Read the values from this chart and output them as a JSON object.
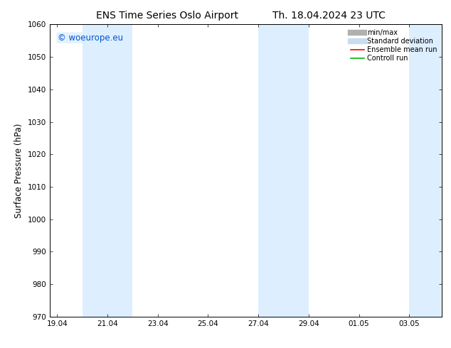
{
  "title_left": "ENS Time Series Oslo Airport",
  "title_right": "Th. 18.04.2024 23 UTC",
  "ylabel": "Surface Pressure (hPa)",
  "ylim": [
    970,
    1060
  ],
  "yticks": [
    970,
    980,
    990,
    1000,
    1010,
    1020,
    1030,
    1040,
    1050,
    1060
  ],
  "xtick_labels": [
    "19.04",
    "21.04",
    "23.04",
    "25.04",
    "27.04",
    "29.04",
    "01.05",
    "03.05"
  ],
  "xtick_positions": [
    0,
    2,
    4,
    6,
    8,
    10,
    12,
    14
  ],
  "xlim": [
    -0.3,
    15.3
  ],
  "watermark": "© woeurope.eu",
  "watermark_color": "#0055cc",
  "bg_color": "#ffffff",
  "shaded_regions": [
    {
      "x_start": 1.0,
      "x_end": 3.0
    },
    {
      "x_start": 8.0,
      "x_end": 10.0
    },
    {
      "x_start": 14.0,
      "x_end": 15.3
    }
  ],
  "shaded_color": "#ddeeff",
  "legend_items": [
    {
      "label": "min/max",
      "color": "#b0b0b0",
      "lw": 6,
      "ls": "-"
    },
    {
      "label": "Standard deviation",
      "color": "#c8ddf0",
      "lw": 6,
      "ls": "-"
    },
    {
      "label": "Ensemble mean run",
      "color": "#ff0000",
      "lw": 1.2,
      "ls": "-"
    },
    {
      "label": "Controll run",
      "color": "#00bb00",
      "lw": 1.2,
      "ls": "-"
    }
  ],
  "title_fontsize": 10,
  "tick_fontsize": 7.5,
  "label_fontsize": 8.5,
  "watermark_fontsize": 8.5,
  "legend_fontsize": 7
}
